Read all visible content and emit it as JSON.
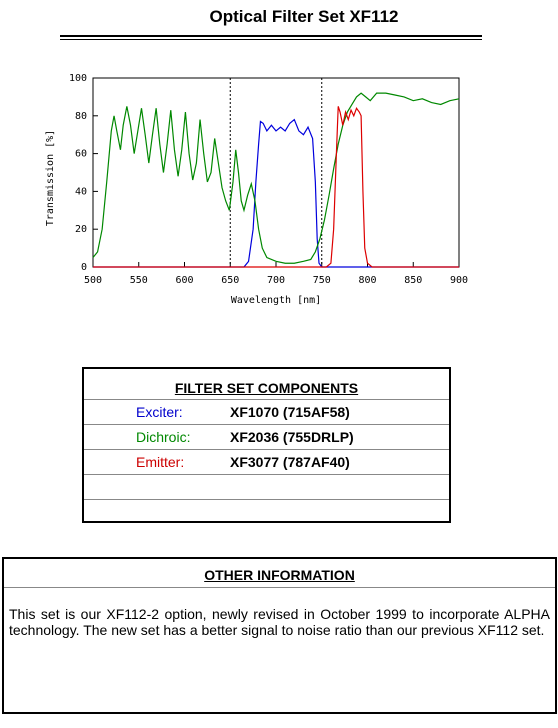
{
  "header": {
    "title": "Optical Filter Set XF112"
  },
  "chart_data": {
    "type": "line",
    "xlabel": "Wavelength [nm]",
    "ylabel": "Transmission [%]",
    "xlim": [
      500,
      900
    ],
    "ylim": [
      0,
      100
    ],
    "xticks": [
      500,
      550,
      600,
      650,
      700,
      750,
      800,
      850,
      900
    ],
    "yticks": [
      0,
      20,
      40,
      60,
      80,
      100
    ],
    "reference_lines": [
      650,
      750
    ],
    "series": [
      {
        "name": "Exciter",
        "color": "#0000dd",
        "x": [
          500,
          660,
          665,
          670,
          675,
          678,
          681,
          683,
          686,
          690,
          695,
          700,
          705,
          710,
          715,
          720,
          725,
          730,
          735,
          740,
          743,
          745,
          747,
          750,
          900
        ],
        "values": [
          0,
          0,
          0,
          3,
          20,
          45,
          65,
          77,
          76,
          72,
          75,
          72,
          74,
          72,
          76,
          78,
          72,
          70,
          74,
          68,
          45,
          15,
          2,
          0,
          0
        ]
      },
      {
        "name": "Dichroic",
        "color": "#008800",
        "x": [
          500,
          505,
          510,
          515,
          520,
          523,
          526,
          530,
          533,
          537,
          541,
          545,
          549,
          553,
          557,
          561,
          565,
          569,
          573,
          577,
          581,
          585,
          589,
          593,
          597,
          601,
          605,
          609,
          613,
          617,
          621,
          625,
          629,
          633,
          637,
          641,
          645,
          649,
          653,
          656,
          659,
          662,
          665,
          669,
          673,
          677,
          681,
          685,
          690,
          700,
          710,
          720,
          730,
          738,
          743,
          748,
          753,
          758,
          763,
          768,
          773,
          778,
          783,
          788,
          793,
          798,
          803,
          810,
          820,
          830,
          840,
          850,
          860,
          870,
          880,
          890,
          900
        ],
        "values": [
          5,
          8,
          20,
          45,
          72,
          80,
          72,
          62,
          75,
          85,
          75,
          60,
          72,
          84,
          70,
          55,
          70,
          84,
          65,
          50,
          65,
          83,
          62,
          48,
          62,
          82,
          60,
          46,
          55,
          78,
          60,
          45,
          50,
          68,
          55,
          42,
          35,
          30,
          45,
          62,
          50,
          35,
          30,
          38,
          44,
          35,
          20,
          10,
          5,
          3,
          2,
          2,
          3,
          4,
          8,
          15,
          25,
          38,
          52,
          65,
          75,
          82,
          86,
          90,
          92,
          90,
          88,
          92,
          92,
          91,
          90,
          88,
          89,
          87,
          86,
          88,
          89
        ]
      },
      {
        "name": "Emitter",
        "color": "#dd0000",
        "x": [
          500,
          755,
          760,
          763,
          766,
          768,
          770,
          773,
          776,
          779,
          782,
          785,
          788,
          791,
          793,
          795,
          797,
          800,
          805,
          900
        ],
        "values": [
          0,
          0,
          2,
          20,
          60,
          85,
          82,
          75,
          82,
          78,
          83,
          80,
          84,
          82,
          80,
          40,
          10,
          2,
          0,
          0
        ]
      }
    ]
  },
  "table": {
    "title": "FILTER SET COMPONENTS",
    "rows": [
      [
        "Exciter:",
        "XF1070 (715AF58)"
      ],
      [
        "Dichroic:",
        "XF2036 (755DRLP)"
      ],
      [
        "Emitter:",
        "XF3077 (787AF40)"
      ]
    ]
  },
  "info": {
    "title": "OTHER INFORMATION",
    "text": "This set is our XF112-2 option, newly revised in October 1999 to incorporate ALPHA technology. The new set has a better signal to noise ratio than our previous XF112 set."
  }
}
